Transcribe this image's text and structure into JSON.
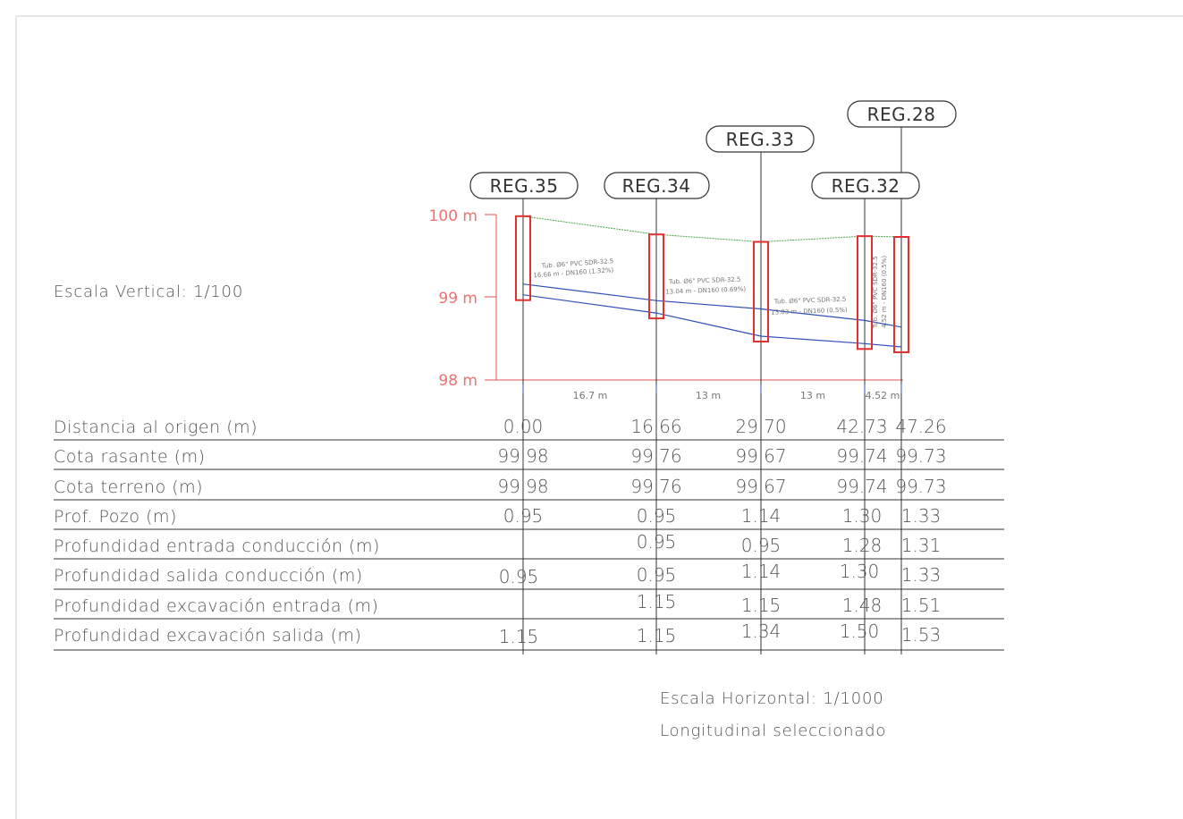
{
  "scales": {
    "vertical": "Escala Vertical: 1/100",
    "horizontal": "Escala Horizontal: 1/1000",
    "selection": "Longitudinal seleccionado"
  },
  "elevation_labels": [
    "100 m",
    "99 m",
    "98 m"
  ],
  "registers": [
    {
      "name": "REG.35"
    },
    {
      "name": "REG.34"
    },
    {
      "name": "REG.33"
    },
    {
      "name": "REG.32"
    },
    {
      "name": "REG.28"
    }
  ],
  "segments": [
    {
      "length": "16.7 m",
      "pipe_l1": "Tub. Ø6\" PVC SDR-32.5",
      "pipe_l2": "16.66 m - DN160 (1.32%)"
    },
    {
      "length": "13 m",
      "pipe_l1": "Tub. Ø6\" PVC SDR-32.5",
      "pipe_l2": "13.04 m - DN160 (0.69%)"
    },
    {
      "length": "13 m",
      "pipe_l1": "Tub. Ø6\" PVC SDR-32.5",
      "pipe_l2": "13.03 m - DN160 (0.5%)"
    },
    {
      "length": "4.52 m",
      "pipe_l1": "Tub. Ø6\" PVC SDR-32.5",
      "pipe_l2": "4.52 m - DN160 (0.5%)"
    }
  ],
  "table": {
    "rows": [
      {
        "label": "Distancia al origen (m)",
        "values": [
          "0.00",
          "16.66",
          "29.70",
          "42.73",
          "47.26"
        ]
      },
      {
        "label": "Cota rasante (m)",
        "values": [
          "99.98",
          "99.76",
          "99.67",
          "99.74",
          "99.73"
        ]
      },
      {
        "label": "Cota terreno (m)",
        "values": [
          "99.98",
          "99.76",
          "99.67",
          "99.74",
          "99.73"
        ]
      },
      {
        "label": "Prof. Pozo (m)",
        "values": [
          "0.95",
          "0.95",
          "1.14",
          "1.30",
          "1.33"
        ]
      },
      {
        "label": "Profundidad entrada conducción (m)",
        "values": [
          "",
          "0.95",
          "0.95",
          "1.28",
          "1.31"
        ]
      },
      {
        "label": "Profundidad salida conducción (m)",
        "values": [
          "0.95",
          "0.95",
          "1.14",
          "1.30",
          "1.33"
        ]
      },
      {
        "label": "Profundidad excavación entrada (m)",
        "values": [
          "",
          "1.15",
          "1.15",
          "1.48",
          "1.51"
        ]
      },
      {
        "label": "Profundidad excavación salida (m)",
        "values": [
          "1.15",
          "1.15",
          "1.34",
          "1.50",
          "1.53"
        ]
      }
    ]
  },
  "profile": {
    "ground_elevations": [
      99.98,
      99.76,
      99.67,
      99.74,
      99.73
    ],
    "pipe_top_elevations": [
      99.16,
      98.96,
      98.86,
      98.72,
      98.64
    ],
    "pipe_bottom_elevations": [
      99.03,
      98.81,
      98.53,
      98.44,
      98.4
    ],
    "elevation_range": [
      98,
      100
    ]
  },
  "colors": {
    "ground": "#49a749",
    "pipe": "#3050b8",
    "manhole": "#e03030",
    "axis": "#e05050",
    "text": "#555555"
  }
}
